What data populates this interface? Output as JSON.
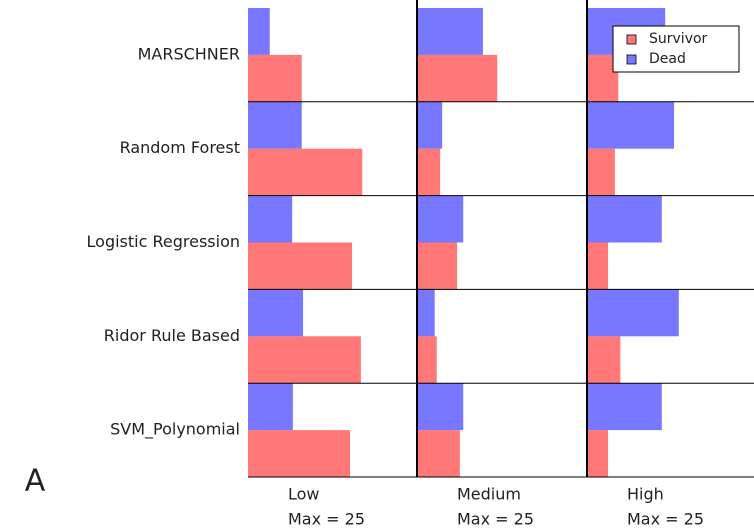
{
  "chart_data": {
    "type": "bar",
    "orientation": "horizontal",
    "panel_label": "A",
    "categories": [
      "MARSCHNER",
      "Random Forest",
      "Logistic Regression",
      "Ridor Rule Based",
      "SVM_Polynomial"
    ],
    "columns": [
      {
        "title": "Low",
        "subtitle": "Max = 25",
        "xlim": [
          0,
          25
        ]
      },
      {
        "title": "Medium",
        "subtitle": "Max = 25",
        "xlim": [
          0,
          25
        ]
      },
      {
        "title": "High",
        "subtitle": "Max = 25",
        "xlim": [
          0,
          25
        ]
      }
    ],
    "series": [
      {
        "name": "Survivor",
        "color": "#ff7777",
        "values": [
          [
            7.9,
            16.8,
            15.3,
            16.6,
            15
          ],
          [
            11.8,
            3.4,
            5.9,
            2.9,
            6.3
          ],
          [
            4.6,
            4.1,
            3.1,
            4.9,
            3.1
          ]
        ]
      },
      {
        "name": "Dead",
        "color": "#7777ff",
        "values": [
          [
            3.2,
            7.9,
            6.5,
            8.1,
            6.6
          ],
          [
            9.7,
            3.7,
            6.8,
            2.6,
            6.8
          ],
          [
            11.5,
            12.8,
            11,
            13.5,
            11
          ]
        ]
      }
    ],
    "legend": "upper right"
  }
}
